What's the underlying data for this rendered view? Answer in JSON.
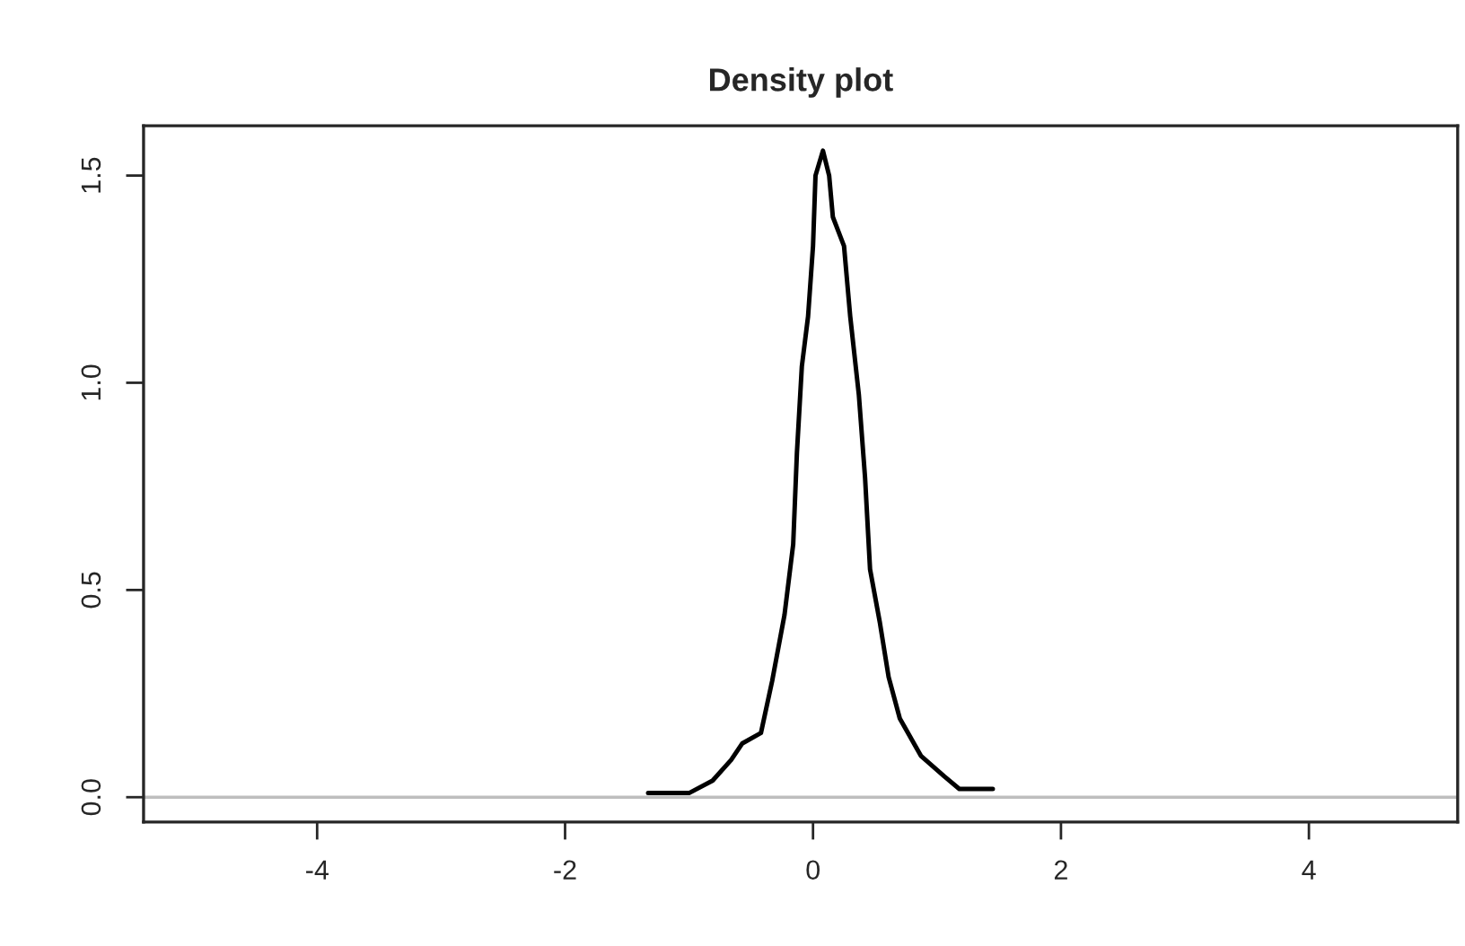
{
  "chart_data": {
    "type": "line",
    "title": "Density plot",
    "x": [
      -1.33,
      -1.0,
      -0.81,
      -0.66,
      -0.57,
      -0.42,
      -0.33,
      -0.23,
      -0.16,
      -0.13,
      -0.09,
      -0.04,
      0.0,
      0.02,
      0.08,
      0.13,
      0.16,
      0.25,
      0.3,
      0.37,
      0.42,
      0.46,
      0.54,
      0.61,
      0.7,
      0.87,
      1.06,
      1.18,
      1.45
    ],
    "series": [
      {
        "color": "#000000",
        "values": [
          0.01,
          0.01,
          0.04,
          0.09,
          0.13,
          0.155,
          0.28,
          0.44,
          0.61,
          0.83,
          1.04,
          1.16,
          1.33,
          1.5,
          1.56,
          1.5,
          1.4,
          1.33,
          1.16,
          0.97,
          0.77,
          0.55,
          0.42,
          0.29,
          0.19,
          0.1,
          0.05,
          0.02,
          0.02
        ]
      }
    ],
    "xlim": [
      -5.4,
      5.2
    ],
    "ylim": [
      -0.06,
      1.62
    ],
    "xticks": [
      -4,
      -2,
      0,
      2,
      4
    ],
    "yticks": [
      {
        "value": 0,
        "label": "0.0"
      },
      {
        "value": 0.5,
        "label": "0.5"
      },
      {
        "value": 1.0,
        "label": "1.0"
      },
      {
        "value": 1.5,
        "label": "1.5"
      }
    ],
    "ref_lines": [
      {
        "axis": "y",
        "value": 0,
        "color": "#bebebe"
      }
    ],
    "grid": false,
    "marker": "none",
    "line_style": "solid"
  }
}
